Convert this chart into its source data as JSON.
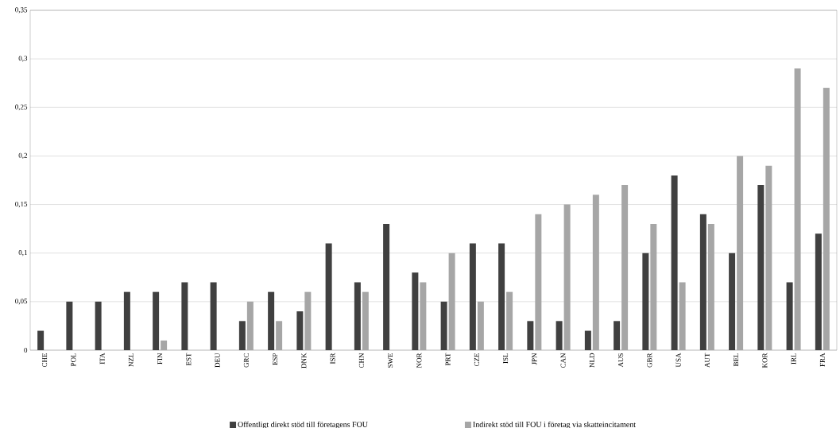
{
  "chart_data": {
    "type": "bar",
    "categories": [
      "CHE",
      "POL",
      "ITA",
      "NZL",
      "FIN",
      "EST",
      "DEU",
      "GRC",
      "ESP",
      "DNK",
      "ISR",
      "CHN",
      "SWE",
      "NOR",
      "PRT",
      "CZE",
      "ISL",
      "JPN",
      "CAN",
      "NLD",
      "AUS",
      "GBR",
      "USA",
      "AUT",
      "BEL",
      "KOR",
      "IRL",
      "FRA"
    ],
    "series": [
      {
        "name": "Offentligt direkt stöd till företagens FOU",
        "color": "#404040",
        "values": [
          0.02,
          0.05,
          0.05,
          0.06,
          0.06,
          0.07,
          0.07,
          0.03,
          0.06,
          0.04,
          0.11,
          0.07,
          0.13,
          0.08,
          0.05,
          0.11,
          0.11,
          0.03,
          0.03,
          0.02,
          0.03,
          0.1,
          0.18,
          0.14,
          0.1,
          0.17,
          0.07,
          0.12
        ]
      },
      {
        "name": "Indirekt stöd till FOU i företag via skatteincitament",
        "color": "#a6a6a6",
        "values": [
          null,
          null,
          null,
          null,
          0.01,
          null,
          null,
          0.05,
          0.03,
          0.06,
          null,
          0.06,
          null,
          0.07,
          0.1,
          0.05,
          0.06,
          0.14,
          0.15,
          0.16,
          0.17,
          0.13,
          0.07,
          0.13,
          0.2,
          0.19,
          0.29,
          0.27
        ]
      }
    ],
    "ylim": [
      0,
      0.35
    ],
    "yticks": [
      0,
      {
        "value": 0.05,
        "label": "0,05"
      },
      {
        "value": 0.1,
        "label": "0,1"
      },
      {
        "value": 0.15,
        "label": "0,15"
      },
      {
        "value": 0.2,
        "label": "0,2"
      },
      {
        "value": 0.25,
        "label": "0,25"
      },
      {
        "value": 0.3,
        "label": "0,3"
      },
      {
        "value": 0.35,
        "label": "0,35"
      }
    ],
    "grid": "y",
    "legend": "bottom"
  }
}
